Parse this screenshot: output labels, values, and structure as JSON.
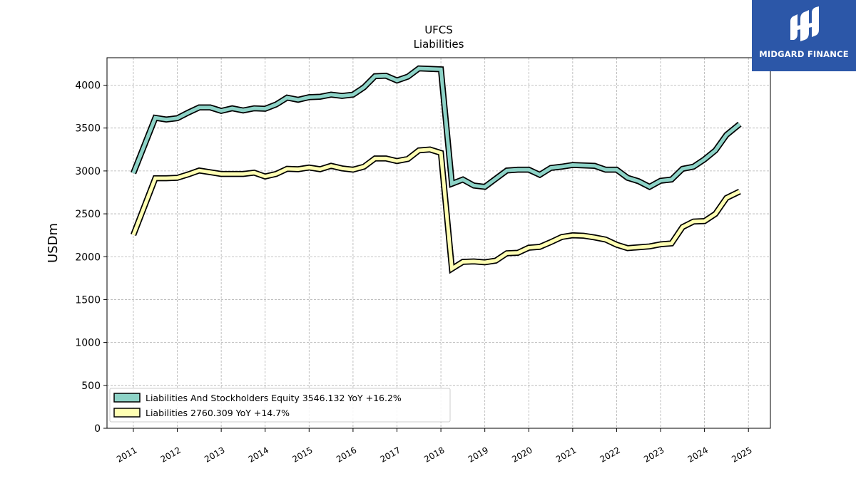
{
  "logo": {
    "text": "MIDGARD FINANCE",
    "icon": "midgard-logo-icon",
    "background": "#2c57a8"
  },
  "chart_data": {
    "type": "line",
    "title": "UFCS",
    "subtitle": "Liabilities",
    "ylabel": "USDm",
    "xlabel": "",
    "ylim": [
      0,
      4320
    ],
    "yticks": [
      0,
      500,
      1000,
      1500,
      2000,
      2500,
      3000,
      3500,
      4000
    ],
    "xlim": [
      2010.4,
      2025.5
    ],
    "xticks": [
      "2011",
      "2012",
      "2013",
      "2014",
      "2015",
      "2016",
      "2017",
      "2018",
      "2019",
      "2020",
      "2021",
      "2022",
      "2023",
      "2024",
      "2025"
    ],
    "grid": true,
    "legend_position": "bottom-left",
    "series": [
      {
        "name": "Liabilities And Stockholders Equity",
        "legend": "Liabilities And Stockholders Equity  3546.132 YoY +16.2%",
        "color": "#8dd3c7",
        "points": [
          [
            2011.0,
            2975
          ],
          [
            2011.5,
            3620
          ],
          [
            2011.75,
            3600
          ],
          [
            2012.0,
            3615
          ],
          [
            2012.25,
            3680
          ],
          [
            2012.5,
            3740
          ],
          [
            2012.75,
            3740
          ],
          [
            2013.0,
            3700
          ],
          [
            2013.25,
            3730
          ],
          [
            2013.5,
            3705
          ],
          [
            2013.75,
            3730
          ],
          [
            2014.0,
            3725
          ],
          [
            2014.25,
            3775
          ],
          [
            2014.5,
            3855
          ],
          [
            2014.75,
            3830
          ],
          [
            2015.0,
            3860
          ],
          [
            2015.25,
            3865
          ],
          [
            2015.5,
            3890
          ],
          [
            2015.75,
            3875
          ],
          [
            2016.0,
            3890
          ],
          [
            2016.25,
            3975
          ],
          [
            2016.5,
            4105
          ],
          [
            2016.75,
            4110
          ],
          [
            2017.0,
            4055
          ],
          [
            2017.25,
            4100
          ],
          [
            2017.5,
            4195
          ],
          [
            2017.75,
            4190
          ],
          [
            2018.0,
            4185
          ],
          [
            2018.25,
            2850
          ],
          [
            2018.5,
            2900
          ],
          [
            2018.75,
            2830
          ],
          [
            2019.0,
            2815
          ],
          [
            2019.25,
            2910
          ],
          [
            2019.5,
            3005
          ],
          [
            2019.75,
            3015
          ],
          [
            2020.0,
            3015
          ],
          [
            2020.25,
            2955
          ],
          [
            2020.5,
            3035
          ],
          [
            2020.75,
            3050
          ],
          [
            2021.0,
            3070
          ],
          [
            2021.25,
            3065
          ],
          [
            2021.5,
            3060
          ],
          [
            2021.75,
            3015
          ],
          [
            2022.0,
            3015
          ],
          [
            2022.25,
            2920
          ],
          [
            2022.5,
            2880
          ],
          [
            2022.75,
            2815
          ],
          [
            2023.0,
            2885
          ],
          [
            2023.25,
            2900
          ],
          [
            2023.5,
            3025
          ],
          [
            2023.75,
            3050
          ],
          [
            2024.0,
            3135
          ],
          [
            2024.25,
            3240
          ],
          [
            2024.5,
            3420
          ],
          [
            2024.8,
            3546
          ]
        ]
      },
      {
        "name": "Liabilities",
        "legend": "Liabilities  2760.309 YoY +14.7%",
        "color": "#ffffb3",
        "points": [
          [
            2011.0,
            2255
          ],
          [
            2011.5,
            2915
          ],
          [
            2011.75,
            2915
          ],
          [
            2012.0,
            2920
          ],
          [
            2012.25,
            2960
          ],
          [
            2012.5,
            3005
          ],
          [
            2012.75,
            2985
          ],
          [
            2013.0,
            2965
          ],
          [
            2013.25,
            2965
          ],
          [
            2013.5,
            2965
          ],
          [
            2013.75,
            2980
          ],
          [
            2014.0,
            2935
          ],
          [
            2014.25,
            2965
          ],
          [
            2014.5,
            3025
          ],
          [
            2014.75,
            3020
          ],
          [
            2015.0,
            3040
          ],
          [
            2015.25,
            3020
          ],
          [
            2015.5,
            3060
          ],
          [
            2015.75,
            3030
          ],
          [
            2016.0,
            3015
          ],
          [
            2016.25,
            3050
          ],
          [
            2016.5,
            3145
          ],
          [
            2016.75,
            3145
          ],
          [
            2017.0,
            3115
          ],
          [
            2017.25,
            3140
          ],
          [
            2017.5,
            3240
          ],
          [
            2017.75,
            3250
          ],
          [
            2018.0,
            3210
          ],
          [
            2018.25,
            1860
          ],
          [
            2018.5,
            1940
          ],
          [
            2018.75,
            1945
          ],
          [
            2019.0,
            1935
          ],
          [
            2019.25,
            1955
          ],
          [
            2019.5,
            2040
          ],
          [
            2019.75,
            2045
          ],
          [
            2020.0,
            2105
          ],
          [
            2020.25,
            2115
          ],
          [
            2020.5,
            2170
          ],
          [
            2020.75,
            2230
          ],
          [
            2021.0,
            2250
          ],
          [
            2021.25,
            2245
          ],
          [
            2021.5,
            2225
          ],
          [
            2021.75,
            2200
          ],
          [
            2022.0,
            2140
          ],
          [
            2022.25,
            2100
          ],
          [
            2022.5,
            2110
          ],
          [
            2022.75,
            2120
          ],
          [
            2023.0,
            2145
          ],
          [
            2023.25,
            2155
          ],
          [
            2023.5,
            2345
          ],
          [
            2023.75,
            2410
          ],
          [
            2024.0,
            2415
          ],
          [
            2024.25,
            2500
          ],
          [
            2024.5,
            2685
          ],
          [
            2024.8,
            2760
          ]
        ]
      }
    ]
  }
}
